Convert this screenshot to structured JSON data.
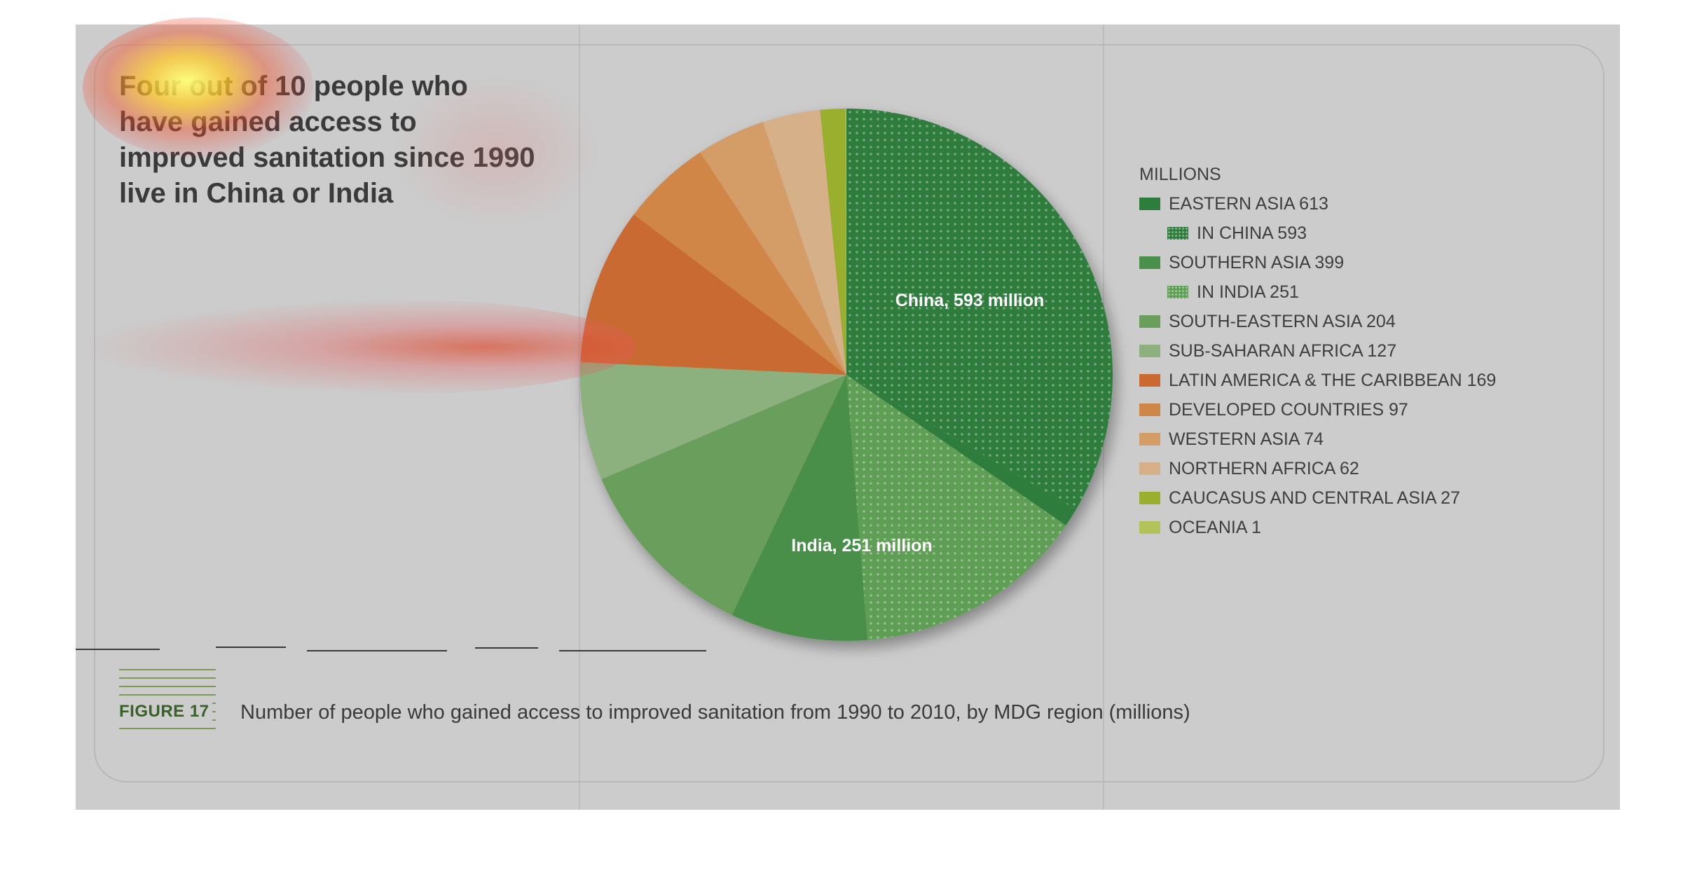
{
  "headline": "Four out of 10 people who have gained access to improved sanitation since 1990 live in China or India",
  "figure_label": "FIGURE 17",
  "caption": "Number of people who gained access to improved sanitation from 1990 to 2010, by MDG region (millions)",
  "chart_data": {
    "type": "pie",
    "legend_title": "MILLIONS",
    "legend_placement": "right",
    "slices": [
      {
        "name": "EASTERN ASIA 613",
        "value": 613,
        "color": "#2e7d3c"
      },
      {
        "name": "IN CHINA 593",
        "value": 593,
        "color": "#2e7d3c",
        "sub_of": "EASTERN ASIA",
        "pattern": "dotted"
      },
      {
        "name": "SOUTHERN ASIA 399",
        "value": 399,
        "color": "#4a8f4a"
      },
      {
        "name": "IN INDIA 251",
        "value": 251,
        "color": "#5e9e55",
        "sub_of": "SOUTHERN ASIA",
        "pattern": "dotted"
      },
      {
        "name": "SOUTH-EASTERN ASIA 204",
        "value": 204,
        "color": "#6a9e5c"
      },
      {
        "name": "SUB-SAHARAN AFRICA 127",
        "value": 127,
        "color": "#8cb07e"
      },
      {
        "name": "LATIN AMERICA & THE CARIBBEAN 169",
        "value": 169,
        "color": "#c96a30"
      },
      {
        "name": "DEVELOPED COUNTRIES 97",
        "value": 97,
        "color": "#cf8646"
      },
      {
        "name": "WESTERN ASIA 74",
        "value": 74,
        "color": "#d49c66"
      },
      {
        "name": "NORTHERN AFRICA 62",
        "value": 62,
        "color": "#d6b088"
      },
      {
        "name": "CAUCASUS AND CENTRAL ASIA 27",
        "value": 27,
        "color": "#9aaf2e"
      },
      {
        "name": "OCEANIA 1",
        "value": 1,
        "color": "#b4c25a"
      }
    ],
    "annotations": [
      "China, 593 million",
      "India, 251 million"
    ]
  }
}
